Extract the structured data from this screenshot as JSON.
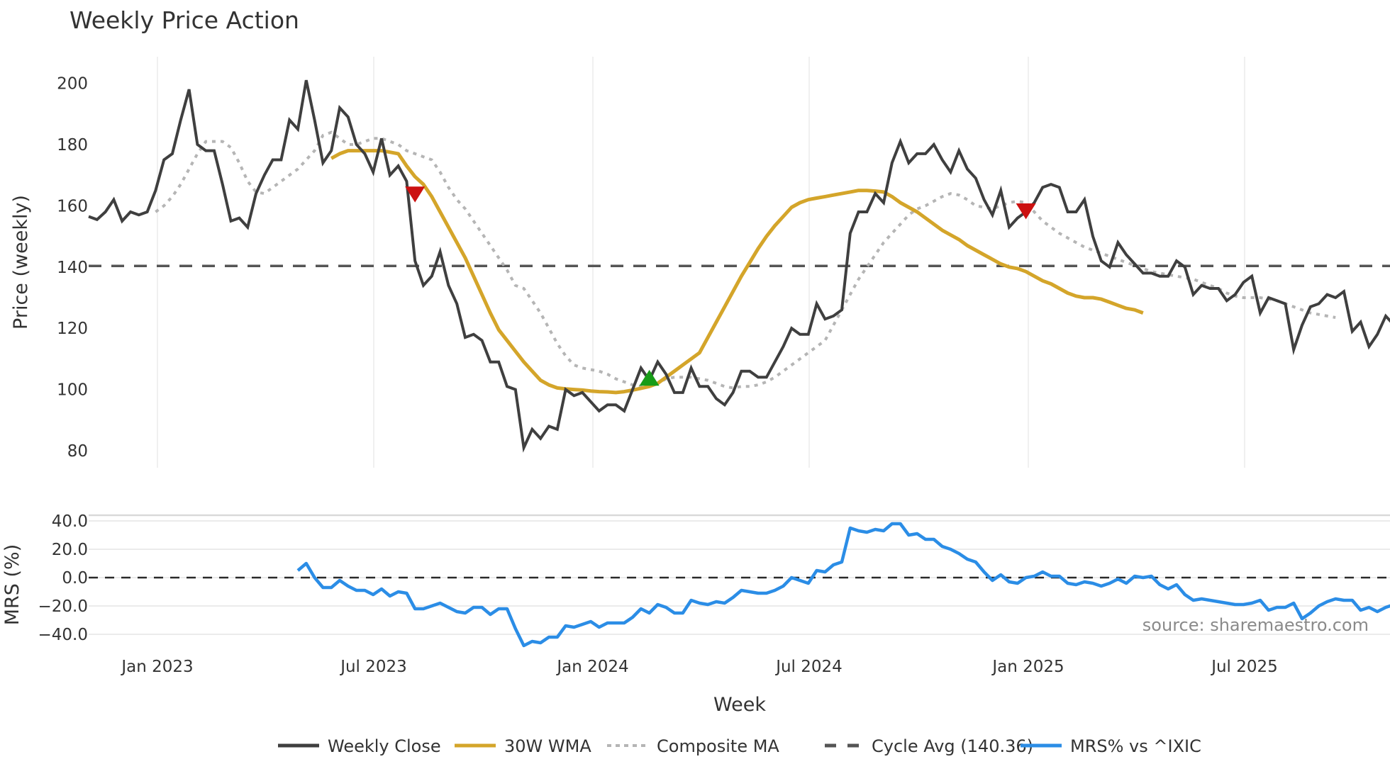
{
  "title": "Weekly Price Action",
  "source_note": "source: sharemaestro.com",
  "colors": {
    "weekly_close": "#3f3f3f",
    "wma": "#d4a52a",
    "composite_ma": "#b5b5b5",
    "cycle_avg": "#555555",
    "mrs": "#2b8de6",
    "sell_marker": "#cc1111",
    "buy_marker": "#179c17",
    "grid": "#ebebeb"
  },
  "legend": [
    {
      "label": "Weekly Close",
      "style": "solid",
      "color": "#3f3f3f"
    },
    {
      "label": "30W WMA",
      "style": "solid",
      "color": "#d4a52a"
    },
    {
      "label": "Composite MA",
      "style": "dotted",
      "color": "#b5b5b5"
    },
    {
      "label": "Cycle Avg (140.36)",
      "style": "dashed",
      "color": "#555555"
    },
    {
      "label": "MRS% vs ^IXIC",
      "style": "solid",
      "color": "#2b8de6"
    }
  ],
  "chart_data": [
    {
      "type": "line",
      "title": "Weekly Price Action",
      "xlabel": "Week",
      "ylabel": "Price (weekly)",
      "ylim": [
        74,
        208
      ],
      "yticks": [
        80,
        100,
        120,
        140,
        160,
        180,
        200
      ],
      "xticks": [
        "Jan 2023",
        "Jul 2023",
        "Jan 2024",
        "Jul 2024",
        "Jan 2025",
        "Jul 2025"
      ],
      "x_start": "Nov 2022",
      "x_end": "Nov 2025",
      "grid": "vertical",
      "series": [
        {
          "name": "Weekly Close",
          "start_index": 0,
          "values": [
            156.5,
            155.5,
            158,
            162,
            155,
            158,
            157,
            158,
            165,
            175,
            177,
            188,
            198,
            180,
            178,
            178,
            167,
            155,
            156,
            153,
            164,
            170,
            175,
            175,
            188,
            185,
            201,
            188,
            174,
            178,
            192,
            189,
            180,
            177,
            171,
            182,
            170,
            173,
            168,
            142,
            134,
            137,
            145,
            134,
            128,
            117,
            118,
            116,
            109,
            109,
            101,
            100,
            81,
            87,
            84,
            88,
            87,
            100,
            98,
            99,
            96,
            93,
            95,
            95,
            93,
            100,
            107,
            103,
            109,
            105,
            99,
            99,
            107,
            101,
            101,
            97,
            95,
            99,
            106,
            106,
            104,
            104,
            109,
            114,
            120,
            118,
            118,
            128,
            123,
            124,
            126,
            151,
            158,
            158,
            164,
            161,
            174,
            181,
            174,
            177,
            177,
            180,
            175,
            171,
            178,
            172,
            169,
            162,
            157,
            165,
            153,
            156,
            158,
            161,
            166,
            167,
            166,
            158,
            158,
            162,
            150,
            142,
            140,
            148,
            144,
            141,
            138,
            138,
            137,
            137,
            142,
            140,
            131,
            134,
            133,
            133,
            129,
            131,
            135,
            137,
            125,
            130,
            129,
            128,
            113,
            121,
            127,
            128,
            131,
            130,
            132,
            119,
            122,
            114,
            118,
            124,
            121
          ]
        },
        {
          "name": "30W WMA",
          "start_index": 29,
          "values": [
            175.5,
            177,
            178,
            178,
            178,
            178,
            178,
            177.5,
            177,
            173,
            169.5,
            167,
            163,
            158,
            153,
            148,
            143,
            137,
            131,
            125,
            119.5,
            116,
            112.5,
            109,
            106,
            103,
            101.5,
            100.5,
            100.2,
            100,
            99.8,
            99.5,
            99.3,
            99.2,
            99,
            99.3,
            99.8,
            100.4,
            101,
            102,
            104,
            106,
            108,
            110,
            112,
            117,
            122,
            127,
            132,
            137,
            141.5,
            146,
            150,
            153.5,
            156.5,
            159.5,
            161,
            162,
            162.5,
            163,
            163.5,
            164,
            164.5,
            165,
            165,
            164.8,
            164.5,
            163,
            161,
            159.5,
            158,
            156,
            154,
            152,
            150.5,
            149,
            147,
            145.5,
            144,
            142.5,
            141,
            140,
            139.5,
            138.5,
            137,
            135.5,
            134.5,
            133,
            131.5,
            130.5,
            130,
            130,
            129.5,
            128.5,
            127.5,
            126.5,
            126,
            125
          ]
        },
        {
          "name": "Composite MA",
          "start_index": 8,
          "values": [
            158,
            160,
            163,
            167,
            172,
            177,
            181,
            181,
            181,
            179,
            174,
            168,
            164.5,
            164,
            166,
            168,
            170,
            172,
            175,
            178,
            183,
            184,
            182,
            180,
            180,
            181,
            182,
            182,
            181,
            180,
            178,
            177,
            176,
            175,
            171,
            166,
            162,
            159,
            155,
            151,
            147,
            143,
            139,
            134,
            133,
            129,
            125,
            120,
            115,
            111,
            108,
            107,
            106.5,
            106,
            105,
            103.5,
            102.5,
            101.5,
            101,
            101,
            102,
            103.5,
            104,
            104,
            104,
            103.5,
            103,
            102,
            101,
            100.5,
            101,
            101,
            101.5,
            102.5,
            104,
            106,
            108,
            110,
            112,
            114,
            116,
            121,
            126,
            131,
            136,
            140,
            144,
            148,
            151,
            154,
            157,
            159,
            160,
            161.5,
            163,
            164,
            163.5,
            162,
            160,
            159.5,
            159,
            160,
            161,
            161.5,
            161,
            158,
            155,
            153,
            151,
            149.5,
            148,
            146.5,
            145.5,
            144.5,
            143.5,
            142.5,
            141.5,
            140.5,
            139.5,
            138.5,
            138,
            137.5,
            137,
            136.5,
            136,
            135,
            134,
            133,
            131.5,
            130.5,
            130,
            130,
            130,
            129.5,
            129,
            128,
            127,
            126,
            125,
            124.5,
            124,
            123.5
          ]
        },
        {
          "name": "Cycle Avg (140.36)",
          "constant": 140.36
        }
      ],
      "markers": [
        {
          "type": "sell",
          "shape": "triangle-down",
          "index": 39,
          "value": 164
        },
        {
          "type": "buy",
          "shape": "triangle-up",
          "index": 67,
          "value": 103.5
        },
        {
          "type": "sell",
          "shape": "triangle-down",
          "index": 112,
          "value": 158.5
        }
      ]
    },
    {
      "type": "line",
      "ylabel": "MRS (%)",
      "ylim": [
        -52,
        44
      ],
      "yticks": [
        -40.0,
        -20.0,
        0.0,
        20.0,
        40.0
      ],
      "ytick_labels": [
        "−40.0",
        "−20.0",
        "0.0",
        "20.0",
        "40.0"
      ],
      "reference_line": 0,
      "series": [
        {
          "name": "MRS% vs ^IXIC",
          "start_index": 25,
          "values": [
            5,
            10,
            0,
            -7,
            -7,
            -2,
            -6,
            -9,
            -9,
            -12,
            -8,
            -13,
            -10,
            -11,
            -22,
            -22,
            -20,
            -18,
            -21,
            -24,
            -25,
            -21,
            -21,
            -26,
            -22,
            -22,
            -36,
            -48,
            -45,
            -46,
            -42,
            -42,
            -34,
            -35,
            -33,
            -31,
            -35,
            -32,
            -32,
            -32,
            -28,
            -22,
            -25,
            -19,
            -21,
            -25,
            -25,
            -16,
            -18,
            -19,
            -17,
            -18,
            -14,
            -9,
            -10,
            -11,
            -11,
            -9,
            -6,
            0,
            -2,
            -4,
            5,
            4,
            9,
            11,
            35,
            33,
            32,
            34,
            33,
            38,
            38,
            30,
            31,
            27,
            27,
            22,
            20,
            17,
            13,
            11,
            4,
            -2,
            2,
            -3,
            -4,
            0,
            1,
            4,
            1,
            1,
            -4,
            -5,
            -3,
            -4,
            -6,
            -4,
            -1,
            -4,
            1,
            0,
            1,
            -5,
            -8,
            -5,
            -12,
            -16,
            -15,
            -16,
            -17,
            -18,
            -19,
            -19,
            -18,
            -16,
            -23,
            -21,
            -21,
            -18,
            -29,
            -25,
            -20,
            -17,
            -15,
            -16,
            -16,
            -23,
            -21,
            -24,
            -21,
            -19,
            -22
          ]
        }
      ]
    }
  ],
  "axes": {
    "price_ylabel": "Price (weekly)",
    "mrs_ylabel": "MRS (%)",
    "xlabel": "Week"
  }
}
